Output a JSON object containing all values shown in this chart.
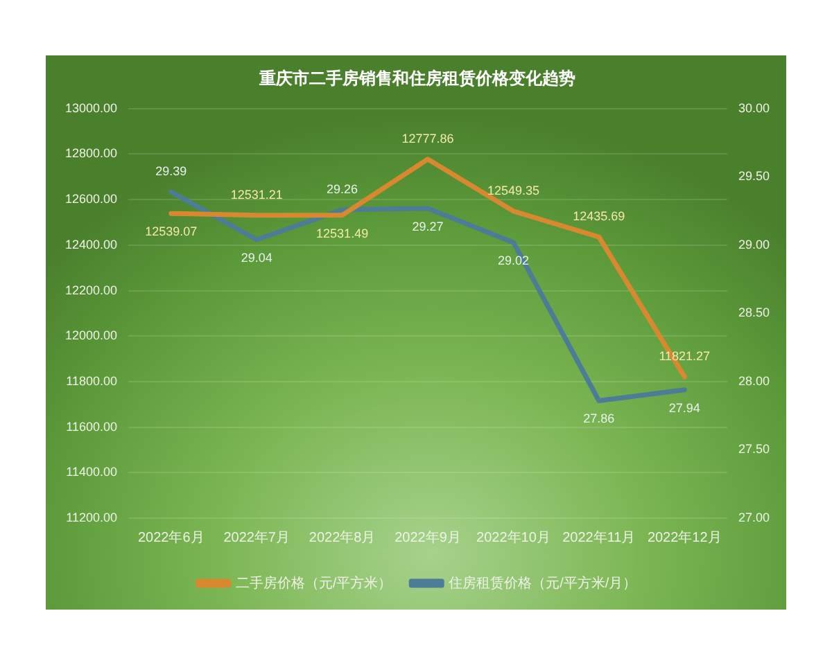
{
  "chart_data": {
    "type": "line",
    "title": "重庆市二手房销售和住房租赁价格变化趋势",
    "categories": [
      "2022年6月",
      "2022年7月",
      "2022年8月",
      "2022年9月",
      "2022年10月",
      "2022年11月",
      "2022年12月"
    ],
    "series": [
      {
        "name": "二手房价格（元/平方米）",
        "color": "#d8892f",
        "values": [
          12539.07,
          12531.21,
          12531.49,
          12777.86,
          12549.35,
          12435.69,
          11821.27
        ]
      },
      {
        "name": "住房租赁价格（元/平方米/月）",
        "color": "#4d7c97",
        "axis": "y2",
        "values": [
          29.39,
          29.04,
          29.26,
          29.27,
          29.02,
          27.86,
          27.94
        ]
      }
    ],
    "ylim": [
      11200,
      13000
    ],
    "yticks": [
      {
        "value": 11200,
        "label": "11200.00"
      },
      {
        "value": 11400,
        "label": "11400.00"
      },
      {
        "value": 11600,
        "label": "11600.00"
      },
      {
        "value": 11800,
        "label": "11800.00"
      },
      {
        "value": 12000,
        "label": "12000.00"
      },
      {
        "value": 12200,
        "label": "12200.00"
      },
      {
        "value": 12400,
        "label": "12400.00"
      },
      {
        "value": 12600,
        "label": "12600.00"
      },
      {
        "value": 12800,
        "label": "12800.00"
      },
      {
        "value": 13000,
        "label": "13000.00"
      }
    ],
    "y2lim": [
      27,
      30
    ],
    "y2ticks": [
      {
        "value": 27,
        "label": "27.00"
      },
      {
        "value": 27.5,
        "label": "27.50"
      },
      {
        "value": 28,
        "label": "28.00"
      },
      {
        "value": 28.5,
        "label": "28.50"
      },
      {
        "value": 29,
        "label": "29.00"
      },
      {
        "value": 29.5,
        "label": "29.50"
      },
      {
        "value": 30,
        "label": "30.00"
      }
    ],
    "data_labels": true,
    "grid": "y",
    "legend": "bottom",
    "marker": "none",
    "line_style": "solid"
  }
}
